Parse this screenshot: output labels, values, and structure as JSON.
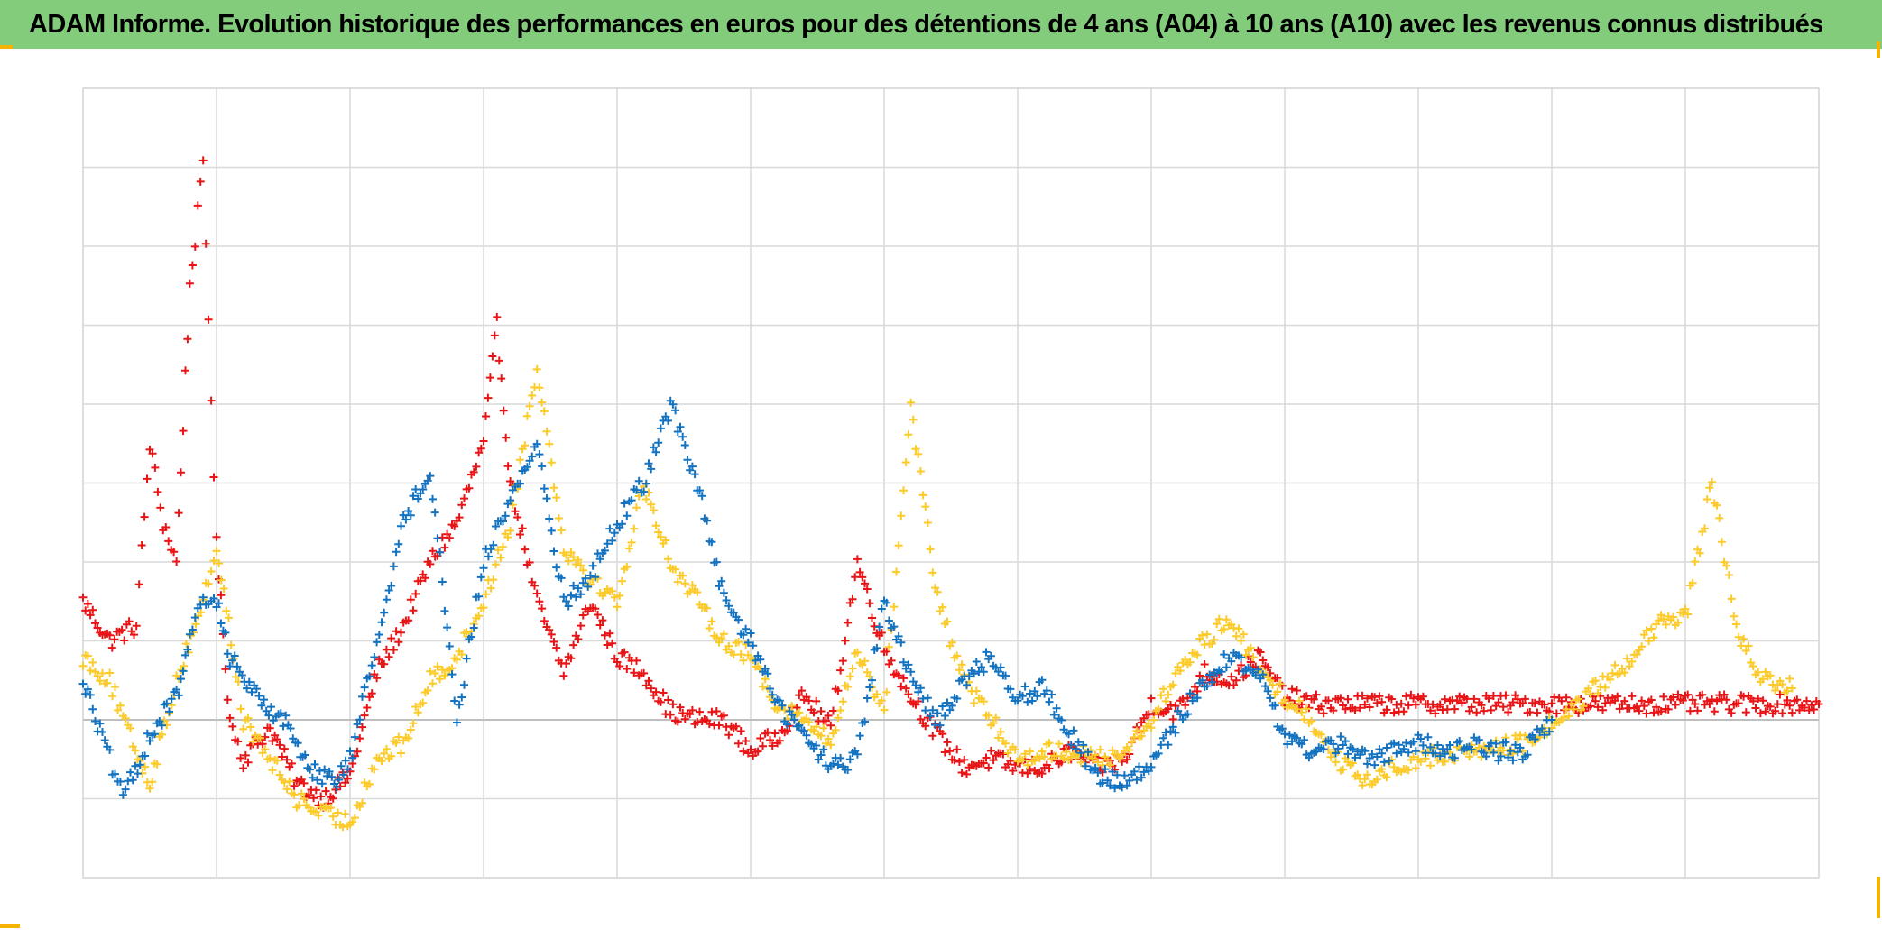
{
  "title": "ADAM Informe. Evolution historique des performances en euros pour des détentions de 4 ans (A04) à 10 ans (A10) avec les revenus connus distribués",
  "colors": {
    "title_bar": "#82cc7b",
    "corner_marks": "#f2b400",
    "grid": "#d9d9d9",
    "zero_line": "#bfbfbf"
  },
  "chart_data": {
    "type": "scatter",
    "marker": "plus",
    "title": "ADAM Informe. Evolution historique des performances en euros pour des détentions de 4 ans (A04) à 10 ans (A10) avec les revenus connus distribués",
    "xlabel": "",
    "ylabel": "",
    "xlim": [
      0,
      13
    ],
    "ylim": [
      -2,
      8
    ],
    "grid": true,
    "legend": "none",
    "tick_labels_visible": false,
    "series": [
      {
        "color": "#e81416",
        "x": [
          0.0,
          0.2,
          0.4,
          0.5,
          0.6,
          0.7,
          0.8,
          0.9,
          1.0,
          1.1,
          1.2,
          1.4,
          1.6,
          1.8,
          2.0,
          2.2,
          2.4,
          2.6,
          2.8,
          3.0,
          3.1,
          3.2,
          3.4,
          3.6,
          3.8,
          4.0,
          4.2,
          4.4,
          4.6,
          4.8,
          5.0,
          5.2,
          5.4,
          5.6,
          5.8,
          6.0,
          6.2,
          6.4,
          6.6,
          6.8,
          7.0,
          7.2,
          7.4,
          7.6,
          7.8,
          8.0,
          8.2,
          8.4,
          8.6,
          8.8,
          9.0,
          9.2,
          9.4,
          9.6,
          9.8,
          10.0,
          10.4,
          10.8,
          11.2,
          11.6,
          12.0,
          12.4,
          12.8,
          13.0
        ],
        "y": [
          1.5,
          1.0,
          1.2,
          3.5,
          2.5,
          2.0,
          5.5,
          7.0,
          2.2,
          0.0,
          -0.5,
          -0.1,
          -0.8,
          -1.0,
          -0.7,
          0.6,
          1.2,
          2.0,
          2.5,
          3.5,
          5.0,
          3.0,
          1.5,
          0.6,
          1.5,
          0.8,
          0.6,
          0.1,
          0.0,
          0.0,
          -0.4,
          -0.2,
          0.3,
          -0.1,
          2.0,
          0.9,
          0.3,
          -0.2,
          -0.6,
          -0.5,
          -0.6,
          -0.6,
          -0.4,
          -0.6,
          -0.5,
          0.2,
          0.1,
          0.6,
          0.5,
          0.8,
          0.3,
          0.2,
          0.2,
          0.2,
          0.2,
          0.2,
          0.2,
          0.2,
          0.2,
          0.2,
          0.2,
          0.2,
          0.2,
          0.2
        ]
      },
      {
        "color": "#fccb2a",
        "x": [
          0.0,
          0.2,
          0.3,
          0.5,
          0.7,
          0.9,
          1.0,
          1.2,
          1.4,
          1.6,
          1.8,
          2.0,
          2.2,
          2.4,
          2.6,
          2.8,
          3.0,
          3.2,
          3.4,
          3.6,
          3.8,
          4.0,
          4.2,
          4.4,
          4.6,
          4.8,
          5.0,
          5.2,
          5.4,
          5.6,
          5.8,
          6.0,
          6.2,
          6.4,
          6.6,
          6.8,
          7.0,
          7.2,
          7.4,
          7.6,
          7.8,
          8.0,
          8.2,
          8.4,
          8.6,
          8.8,
          9.0,
          9.2,
          9.4,
          9.6,
          9.8,
          10.0,
          10.4,
          10.8,
          11.2,
          11.6,
          11.8,
          12.0,
          12.2,
          12.4,
          12.6,
          12.8
        ],
        "y": [
          0.8,
          0.5,
          0.0,
          -0.8,
          0.5,
          1.5,
          2.2,
          0.0,
          -0.5,
          -1.0,
          -1.2,
          -1.3,
          -0.5,
          -0.3,
          0.5,
          0.8,
          1.5,
          2.5,
          4.5,
          2.2,
          1.8,
          1.5,
          3.0,
          2.0,
          1.5,
          1.0,
          0.8,
          0.2,
          0.0,
          -0.3,
          0.9,
          0.1,
          4.0,
          1.5,
          0.5,
          0.0,
          -0.5,
          -0.4,
          -0.4,
          -0.5,
          -0.4,
          0.0,
          0.6,
          1.0,
          1.3,
          0.6,
          0.3,
          0.0,
          -0.5,
          -0.8,
          -0.6,
          -0.5,
          -0.4,
          -0.3,
          0.2,
          0.8,
          1.2,
          1.3,
          3.0,
          1.0,
          0.5,
          0.4
        ]
      },
      {
        "color": "#1473c0",
        "x": [
          0.0,
          0.2,
          0.3,
          0.5,
          0.7,
          0.8,
          0.9,
          1.0,
          1.1,
          1.3,
          1.5,
          1.7,
          1.9,
          2.0,
          2.2,
          2.4,
          2.6,
          2.8,
          3.0,
          3.2,
          3.4,
          3.6,
          3.8,
          4.0,
          4.2,
          4.4,
          4.6,
          4.8,
          5.0,
          5.2,
          5.4,
          5.6,
          5.8,
          6.0,
          6.2,
          6.4,
          6.6,
          6.8,
          7.0,
          7.2,
          7.4,
          7.6,
          7.8,
          8.0,
          8.2,
          8.4,
          8.6,
          8.8,
          9.0,
          9.2,
          9.4,
          9.6,
          9.8,
          10.0,
          10.2,
          10.4,
          10.6,
          10.8,
          11.0
        ],
        "y": [
          0.5,
          -0.5,
          -1.0,
          -0.2,
          0.3,
          1.0,
          1.5,
          1.5,
          0.8,
          0.3,
          0.0,
          -0.6,
          -0.8,
          -0.5,
          1.0,
          2.5,
          3.2,
          0.0,
          2.0,
          2.8,
          3.5,
          1.5,
          1.8,
          2.5,
          3.0,
          4.0,
          3.0,
          1.5,
          1.0,
          0.2,
          -0.2,
          -0.6,
          -0.5,
          1.5,
          0.5,
          0.0,
          0.5,
          0.8,
          0.3,
          0.4,
          -0.2,
          -0.7,
          -0.8,
          -0.6,
          0.0,
          0.5,
          0.8,
          0.6,
          -0.2,
          -0.4,
          -0.3,
          -0.5,
          -0.4,
          -0.3,
          -0.4,
          -0.3,
          -0.4,
          -0.4,
          0.0
        ]
      }
    ]
  }
}
